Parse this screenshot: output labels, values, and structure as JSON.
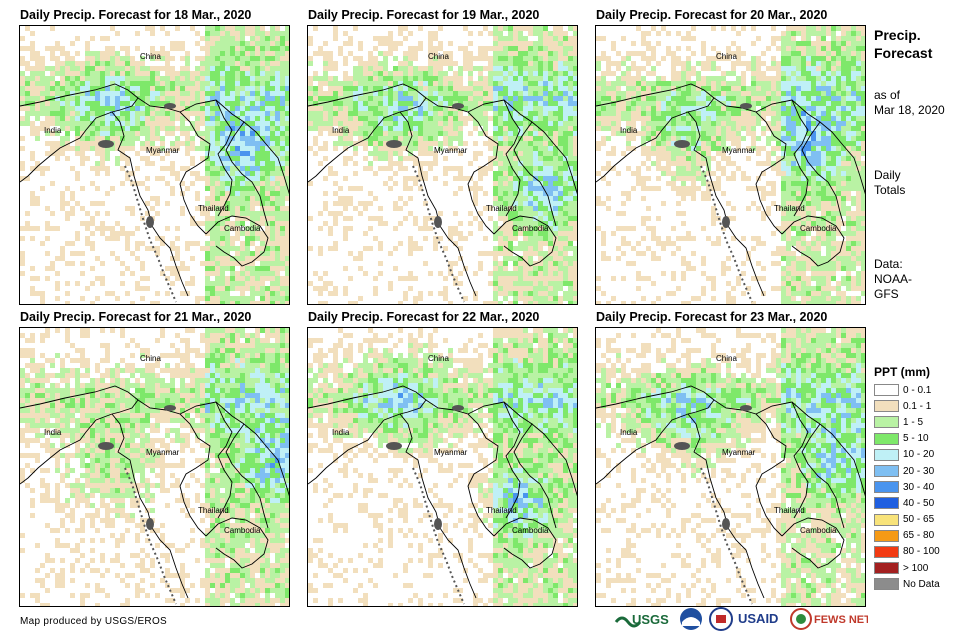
{
  "panels": [
    {
      "title": "Daily Precip. Forecast for 18 Mar., 2020",
      "seed": 11
    },
    {
      "title": "Daily Precip. Forecast for 19 Mar., 2020",
      "seed": 23
    },
    {
      "title": "Daily Precip. Forecast for 20 Mar., 2020",
      "seed": 37
    },
    {
      "title": "Daily Precip. Forecast for 21 Mar., 2020",
      "seed": 41
    },
    {
      "title": "Daily Precip. Forecast for 22 Mar., 2020",
      "seed": 53
    },
    {
      "title": "Daily Precip. Forecast for 23 Mar., 2020",
      "seed": 67
    }
  ],
  "map_labels": {
    "china": "China",
    "india": "India",
    "myanmar": "Myanmar",
    "thailand": "Thailand",
    "cambodia": "Cambodia"
  },
  "sidebar": {
    "title_line1": "Precip.",
    "title_line2": "Forecast",
    "asof_line1": "as of",
    "asof_line2": "Mar 18, 2020",
    "daily_line1": "Daily",
    "daily_line2": "Totals",
    "data_line1": "Data:",
    "data_line2": "NOAA-",
    "data_line3": "GFS"
  },
  "legend": {
    "title": "PPT (mm)",
    "items": [
      {
        "label": "0 - 0.1",
        "color": "#ffffff"
      },
      {
        "label": "0.1 - 1",
        "color": "#f2dfbd"
      },
      {
        "label": "1 - 5",
        "color": "#b9f2a4"
      },
      {
        "label": "5 - 10",
        "color": "#7ee86a"
      },
      {
        "label": "10 - 20",
        "color": "#bff0f6"
      },
      {
        "label": "20 - 30",
        "color": "#7fbff2"
      },
      {
        "label": "30 - 40",
        "color": "#4a94ee"
      },
      {
        "label": "40 - 50",
        "color": "#1f5fe0"
      },
      {
        "label": "50 - 65",
        "color": "#f8e37a"
      },
      {
        "label": "65 - 80",
        "color": "#f59a16"
      },
      {
        "label": "80 - 100",
        "color": "#f23a12"
      },
      {
        "label": "> 100",
        "color": "#a32020"
      },
      {
        "label": "No Data",
        "color": "#8c8c8c"
      }
    ]
  },
  "footer": {
    "credit": "Map produced by USGS/EROS"
  },
  "logos": {
    "usgs": "USGS",
    "usaid": "USAID",
    "fewsnet": "FEWS NET"
  }
}
